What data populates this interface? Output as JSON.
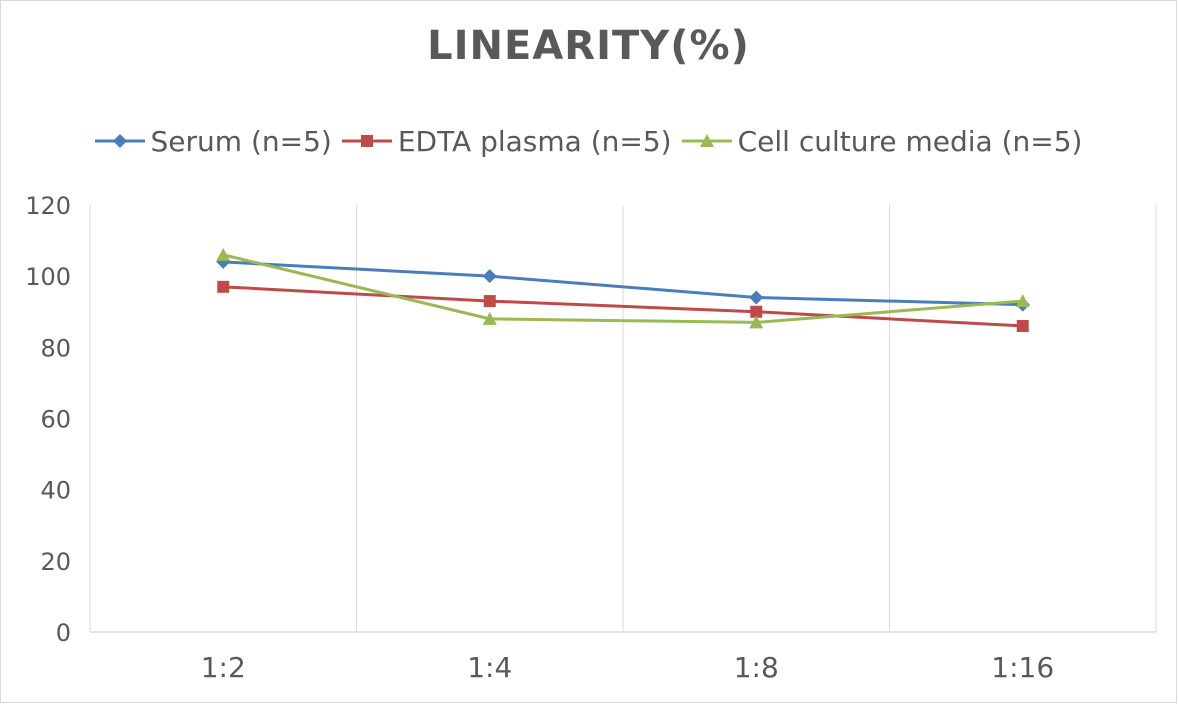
{
  "chart_data": {
    "type": "line",
    "title": "LINEARITY(%)",
    "categories": [
      "1:2",
      "1:4",
      "1:8",
      "1:16"
    ],
    "ylim": [
      0,
      120
    ],
    "yticks": [
      0,
      20,
      40,
      60,
      80,
      100,
      120
    ],
    "grid": "vertical",
    "legend_position": "top",
    "series": [
      {
        "name": "Serum (n=5)",
        "values": [
          104,
          100,
          94,
          92
        ],
        "color": "#4a7ebb",
        "marker": "diamond"
      },
      {
        "name": "EDTA plasma (n=5)",
        "values": [
          97,
          93,
          90,
          86
        ],
        "color": "#be4b48",
        "marker": "square"
      },
      {
        "name": "Cell culture media (n=5)",
        "values": [
          106,
          88,
          87,
          93
        ],
        "color": "#98b954",
        "marker": "triangle"
      }
    ]
  }
}
